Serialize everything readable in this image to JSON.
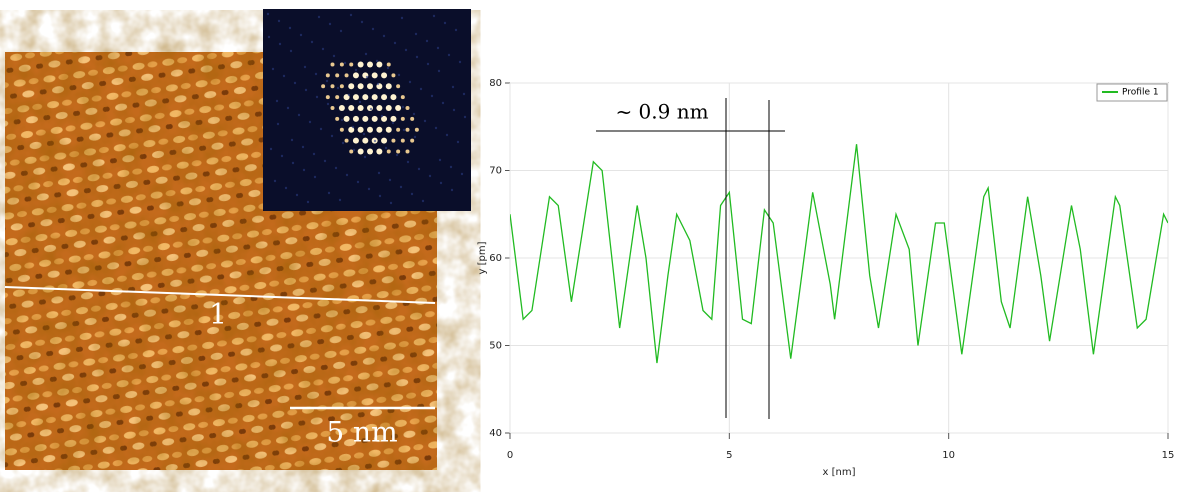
{
  "chart_data": {
    "type": "line",
    "xlabel": "x [nm]",
    "ylabel": "y [pm]",
    "annotation": "~ 0.9 nm",
    "x": [
      0,
      0.3,
      0.5,
      0.9,
      1.1,
      1.4,
      1.9,
      2.1,
      2.5,
      2.9,
      3.1,
      3.35,
      3.6,
      3.8,
      4.1,
      4.4,
      4.6,
      4.8,
      5.0,
      5.3,
      5.5,
      5.8,
      6.0,
      6.4,
      6.9,
      7.3,
      7.4,
      7.9,
      8.2,
      8.4,
      8.8,
      9.1,
      9.3,
      9.7,
      9.9,
      10.3,
      10.8,
      10.9,
      11.2,
      11.4,
      11.8,
      12.1,
      12.3,
      12.8,
      13.0,
      13.3,
      13.8,
      13.9,
      14.3,
      14.5,
      14.9,
      15
    ],
    "series": [
      {
        "name": "Profile 1",
        "color": "#22bb22",
        "values": [
          65,
          53,
          54,
          67,
          66,
          55,
          71,
          70,
          52,
          66,
          60,
          48,
          58,
          65,
          62,
          54,
          53,
          66,
          67.5,
          53,
          52.5,
          65.5,
          64,
          48.5,
          67.5,
          57,
          53,
          73,
          58,
          52,
          65,
          61,
          50,
          64,
          64,
          49,
          67,
          68,
          55,
          52,
          67,
          58,
          50.5,
          66,
          61,
          49,
          67,
          66,
          52,
          53,
          65,
          64
        ]
      }
    ],
    "xlim": [
      0,
      15
    ],
    "xticks": [
      0,
      5,
      10,
      15
    ],
    "ylim": [
      40,
      80
    ],
    "yticks": [
      40,
      50,
      60,
      70,
      80
    ],
    "grid": true,
    "legend": "upper right"
  },
  "image": {
    "line_label": "1",
    "scale_label": "5 nm"
  }
}
